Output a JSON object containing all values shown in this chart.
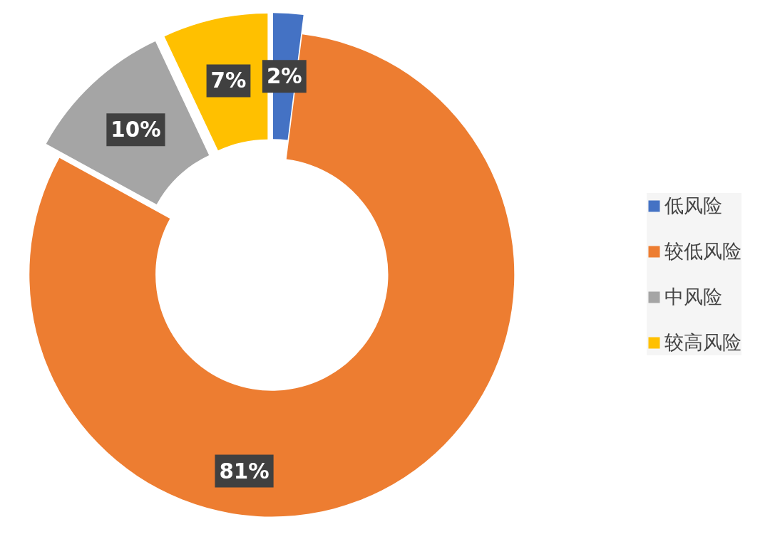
{
  "chart_data": {
    "type": "donut",
    "categories": [
      "低风险",
      "较低风险",
      "中风险",
      "较高风险"
    ],
    "values": [
      2,
      81,
      10,
      7
    ],
    "colors": [
      "#4472c4",
      "#ed7d31",
      "#a5a5a5",
      "#ffc000"
    ],
    "value_labels": [
      "2%",
      "81%",
      "10%",
      "7%"
    ],
    "legend": "right"
  }
}
